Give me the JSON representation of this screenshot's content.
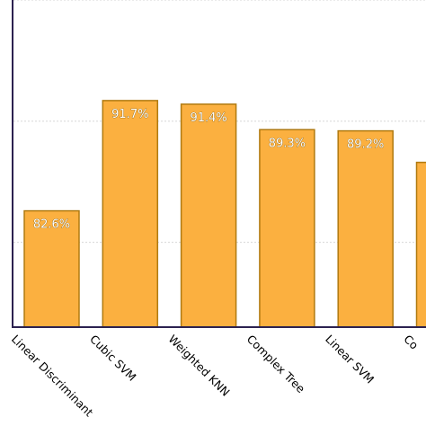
{
  "chart_data": {
    "type": "bar",
    "categories": [
      "Linear Discriminant",
      "Cubic SVM",
      "Weighted KNN",
      "Complex Tree",
      "Linear SVM",
      "Co"
    ],
    "values": [
      82.6,
      91.7,
      91.4,
      89.3,
      89.2,
      86.6
    ],
    "data_labels": [
      "82.6%",
      "91.7%",
      "91.4%",
      "89.3%",
      "89.2%",
      ""
    ],
    "ylim": [
      73,
      100
    ],
    "grid": true,
    "colors": {
      "bar": "#fbb040",
      "bar_edge": "#b07a10",
      "axis": "#2c2250"
    }
  }
}
